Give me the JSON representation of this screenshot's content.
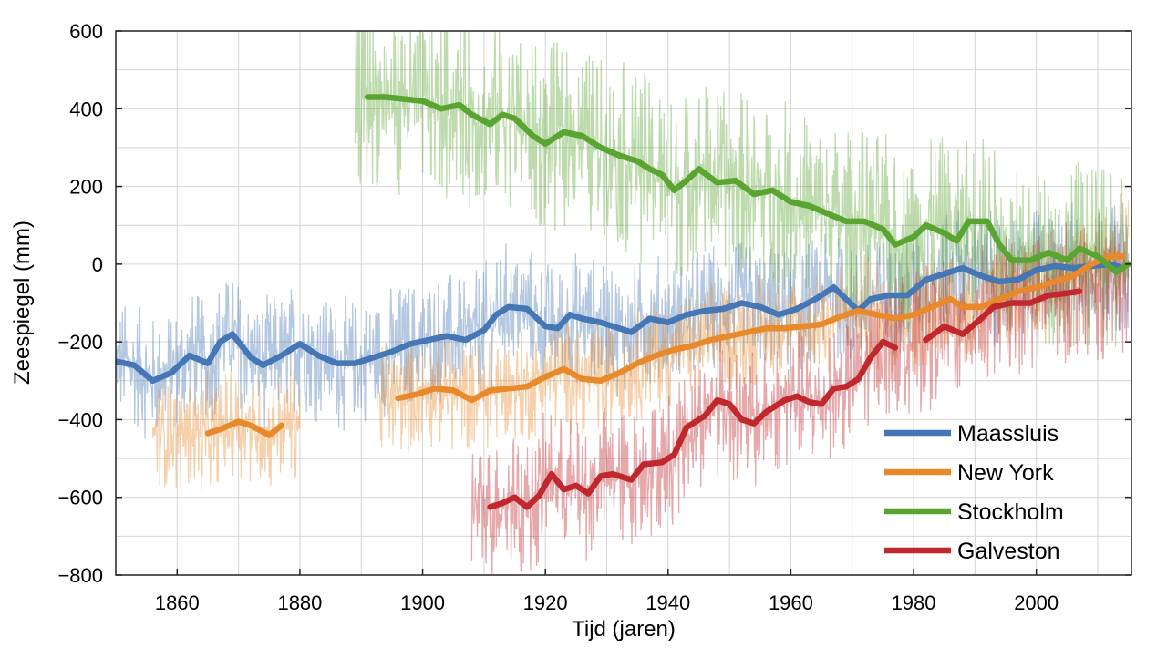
{
  "chart_data": {
    "type": "line",
    "title": "",
    "xlabel": "Tijd (jaren)",
    "ylabel": "Zeespiegel (mm)",
    "xlim": [
      1850,
      2015.5
    ],
    "ylim": [
      -800,
      600
    ],
    "xticks": [
      1860,
      1880,
      1900,
      1920,
      1940,
      1960,
      1980,
      2000
    ],
    "yticks": [
      600,
      400,
      200,
      0,
      -200,
      -400,
      -600,
      -800
    ],
    "ytick_labels": [
      "600",
      "400",
      "200",
      "0",
      "−200",
      "−400",
      "−600",
      "−800"
    ],
    "xtick_labels": [
      "1860",
      "1880",
      "1900",
      "1920",
      "1940",
      "1960",
      "1980",
      "2000"
    ],
    "grid": true,
    "legend_position": "bottom-right",
    "series": [
      {
        "name": "Maassluis",
        "color": "#4576b5",
        "raw_amplitude_mm": 150,
        "raw_ranges": [
          [
            1850,
            2015
          ]
        ],
        "segments": [
          [
            [
              1850,
              -250
            ],
            [
              1853,
              -260
            ],
            [
              1856,
              -300
            ],
            [
              1859,
              -280
            ],
            [
              1862,
              -235
            ],
            [
              1865,
              -255
            ],
            [
              1867,
              -200
            ],
            [
              1869,
              -180
            ],
            [
              1872,
              -240
            ],
            [
              1874,
              -260
            ],
            [
              1877,
              -235
            ],
            [
              1880,
              -205
            ],
            [
              1883,
              -235
            ],
            [
              1886,
              -255
            ],
            [
              1889,
              -255
            ],
            [
              1892,
              -240
            ],
            [
              1895,
              -225
            ],
            [
              1898,
              -205
            ],
            [
              1901,
              -195
            ],
            [
              1904,
              -185
            ],
            [
              1907,
              -195
            ],
            [
              1910,
              -170
            ],
            [
              1912,
              -130
            ],
            [
              1914,
              -110
            ],
            [
              1917,
              -115
            ],
            [
              1920,
              -160
            ],
            [
              1922,
              -165
            ],
            [
              1924,
              -130
            ],
            [
              1926,
              -140
            ],
            [
              1929,
              -150
            ],
            [
              1932,
              -165
            ],
            [
              1934,
              -175
            ],
            [
              1937,
              -140
            ],
            [
              1940,
              -150
            ],
            [
              1943,
              -130
            ],
            [
              1946,
              -120
            ],
            [
              1949,
              -115
            ],
            [
              1952,
              -100
            ],
            [
              1955,
              -110
            ],
            [
              1958,
              -130
            ],
            [
              1961,
              -115
            ],
            [
              1964,
              -90
            ],
            [
              1967,
              -60
            ],
            [
              1969,
              -90
            ],
            [
              1971,
              -120
            ],
            [
              1973,
              -90
            ],
            [
              1976,
              -80
            ],
            [
              1979,
              -80
            ],
            [
              1982,
              -40
            ],
            [
              1985,
              -25
            ],
            [
              1988,
              -10
            ],
            [
              1991,
              -30
            ],
            [
              1994,
              -45
            ],
            [
              1997,
              -40
            ],
            [
              2000,
              -15
            ],
            [
              2003,
              -5
            ],
            [
              2006,
              -10
            ],
            [
              2009,
              -5
            ],
            [
              2012,
              0
            ],
            [
              2014,
              -10
            ]
          ]
        ]
      },
      {
        "name": "New York",
        "color": "#e8892b",
        "raw_amplitude_mm": 130,
        "raw_ranges": [
          [
            1856,
            1880
          ],
          [
            1893,
            2015
          ]
        ],
        "segments": [
          [
            [
              1865,
              -435
            ],
            [
              1867,
              -425
            ],
            [
              1870,
              -405
            ],
            [
              1872,
              -415
            ],
            [
              1875,
              -440
            ],
            [
              1877,
              -415
            ]
          ],
          [
            [
              1896,
              -345
            ],
            [
              1899,
              -335
            ],
            [
              1902,
              -320
            ],
            [
              1905,
              -325
            ],
            [
              1908,
              -350
            ],
            [
              1911,
              -325
            ],
            [
              1914,
              -320
            ],
            [
              1917,
              -315
            ],
            [
              1920,
              -290
            ],
            [
              1923,
              -270
            ],
            [
              1926,
              -295
            ],
            [
              1929,
              -300
            ],
            [
              1932,
              -280
            ],
            [
              1935,
              -255
            ],
            [
              1938,
              -235
            ],
            [
              1941,
              -220
            ],
            [
              1944,
              -210
            ],
            [
              1947,
              -195
            ],
            [
              1950,
              -185
            ],
            [
              1953,
              -175
            ],
            [
              1956,
              -165
            ],
            [
              1959,
              -165
            ],
            [
              1962,
              -160
            ],
            [
              1965,
              -155
            ],
            [
              1968,
              -135
            ],
            [
              1971,
              -120
            ],
            [
              1974,
              -130
            ],
            [
              1977,
              -140
            ],
            [
              1980,
              -130
            ],
            [
              1983,
              -110
            ],
            [
              1986,
              -90
            ],
            [
              1988,
              -110
            ],
            [
              1991,
              -110
            ],
            [
              1994,
              -90
            ],
            [
              1997,
              -70
            ],
            [
              2000,
              -60
            ],
            [
              2003,
              -45
            ],
            [
              2006,
              -30
            ],
            [
              2009,
              0
            ],
            [
              2012,
              20
            ],
            [
              2014,
              20
            ]
          ]
        ]
      },
      {
        "name": "Stockholm",
        "color": "#5aa532",
        "raw_amplitude_mm": 220,
        "raw_ranges": [
          [
            1889,
            2015
          ]
        ],
        "segments": [
          [
            [
              1891,
              430
            ],
            [
              1894,
              430
            ],
            [
              1897,
              425
            ],
            [
              1900,
              420
            ],
            [
              1903,
              400
            ],
            [
              1906,
              410
            ],
            [
              1908,
              385
            ],
            [
              1911,
              360
            ],
            [
              1913,
              385
            ],
            [
              1915,
              375
            ],
            [
              1918,
              330
            ],
            [
              1920,
              310
            ],
            [
              1923,
              340
            ],
            [
              1926,
              330
            ],
            [
              1929,
              300
            ],
            [
              1932,
              280
            ],
            [
              1935,
              265
            ],
            [
              1937,
              245
            ],
            [
              1939,
              230
            ],
            [
              1941,
              190
            ],
            [
              1943,
              215
            ],
            [
              1945,
              245
            ],
            [
              1948,
              210
            ],
            [
              1951,
              215
            ],
            [
              1954,
              180
            ],
            [
              1957,
              190
            ],
            [
              1960,
              160
            ],
            [
              1963,
              150
            ],
            [
              1966,
              130
            ],
            [
              1969,
              110
            ],
            [
              1972,
              110
            ],
            [
              1975,
              90
            ],
            [
              1977,
              50
            ],
            [
              1980,
              70
            ],
            [
              1982,
              100
            ],
            [
              1985,
              80
            ],
            [
              1987,
              60
            ],
            [
              1989,
              110
            ],
            [
              1992,
              110
            ],
            [
              1994,
              50
            ],
            [
              1996,
              10
            ],
            [
              1999,
              10
            ],
            [
              2002,
              30
            ],
            [
              2005,
              10
            ],
            [
              2007,
              40
            ],
            [
              2010,
              20
            ],
            [
              2013,
              -20
            ],
            [
              2015,
              0
            ]
          ]
        ]
      },
      {
        "name": "Galveston",
        "color": "#c0282d",
        "raw_amplitude_mm": 160,
        "raw_ranges": [
          [
            1908,
            2015
          ]
        ],
        "segments": [
          [
            [
              1911,
              -625
            ],
            [
              1913,
              -615
            ],
            [
              1915,
              -600
            ],
            [
              1917,
              -625
            ],
            [
              1919,
              -595
            ],
            [
              1921,
              -540
            ],
            [
              1923,
              -580
            ],
            [
              1925,
              -570
            ],
            [
              1927,
              -590
            ],
            [
              1929,
              -545
            ],
            [
              1931,
              -540
            ],
            [
              1934,
              -555
            ],
            [
              1936,
              -515
            ],
            [
              1939,
              -510
            ],
            [
              1941,
              -490
            ],
            [
              1943,
              -420
            ],
            [
              1946,
              -390
            ],
            [
              1948,
              -350
            ],
            [
              1950,
              -360
            ],
            [
              1952,
              -400
            ],
            [
              1954,
              -410
            ],
            [
              1956,
              -380
            ],
            [
              1959,
              -350
            ],
            [
              1961,
              -340
            ],
            [
              1963,
              -355
            ],
            [
              1965,
              -360
            ],
            [
              1967,
              -320
            ],
            [
              1969,
              -315
            ],
            [
              1971,
              -295
            ],
            [
              1973,
              -240
            ],
            [
              1975,
              -200
            ],
            [
              1977,
              -215
            ]
          ],
          [
            [
              1982,
              -195
            ],
            [
              1985,
              -160
            ],
            [
              1988,
              -180
            ],
            [
              1991,
              -140
            ],
            [
              1993,
              -110
            ],
            [
              1996,
              -100
            ],
            [
              1999,
              -100
            ],
            [
              2002,
              -80
            ],
            [
              2005,
              -75
            ],
            [
              2007,
              -70
            ]
          ]
        ]
      }
    ]
  }
}
